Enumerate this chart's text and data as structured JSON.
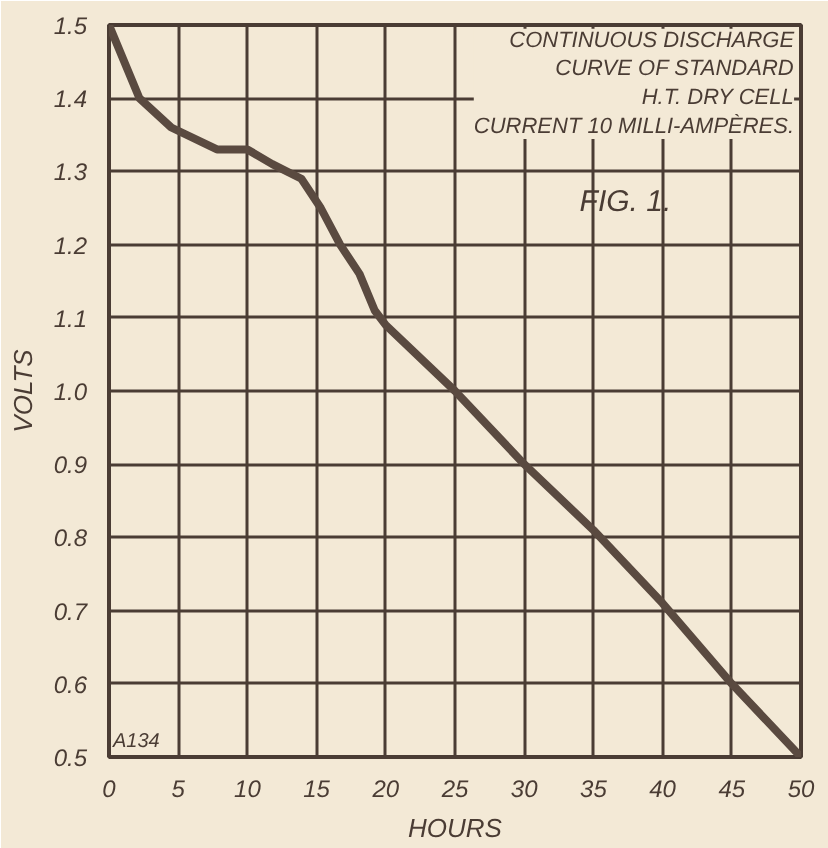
{
  "chart_data": {
    "type": "line",
    "title": "CONTINUOUS DISCHARGE\nCURVE OF STANDARD\nH.T. DRY CELL\nCURRENT 10 MILLI-AMPÈRES.",
    "xlabel": "HOURS",
    "ylabel": "VOLTS",
    "annotations": [
      "FIG. 1.",
      "A134"
    ],
    "x": [
      0,
      2.2,
      4.5,
      7.8,
      10,
      11.8,
      13.9,
      15.3,
      16.7,
      18.1,
      19.2,
      20,
      25,
      30,
      35,
      40,
      45,
      50
    ],
    "series": [
      {
        "color": "#5a4a40",
        "values": [
          1.5,
          1.4,
          1.36,
          1.33,
          1.33,
          1.31,
          1.29,
          1.25,
          1.2,
          1.16,
          1.11,
          1.09,
          1.0,
          0.9,
          0.81,
          0.71,
          0.6,
          0.5
        ]
      }
    ],
    "xlim": [
      0,
      50
    ],
    "ylim": [
      0.5,
      1.5
    ],
    "xticks": [
      0,
      5,
      10,
      15,
      20,
      25,
      30,
      35,
      40,
      45,
      50
    ],
    "yticks": [
      0.5,
      0.6,
      0.7,
      0.8,
      0.9,
      {
        "value": 1.0,
        "label": "1.0"
      },
      1.1,
      1.2,
      1.3,
      1.4,
      1.5
    ],
    "grid": true,
    "marker": "none",
    "line_style": "solid"
  }
}
